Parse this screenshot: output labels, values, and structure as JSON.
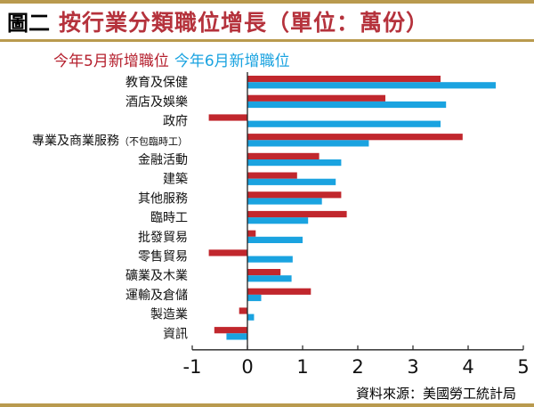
{
  "header": {
    "fig_no": "圖二",
    "title": "按行業分類職位增長（單位：萬份）"
  },
  "legend": {
    "may": "今年5月新增職位",
    "jun": "今年6月新增職位"
  },
  "source": "資料來源：美國勞工統計局",
  "colors": {
    "may": "#c1272d",
    "jun": "#1aa3e0",
    "gold": "#b99a4e",
    "title": "#b5323c"
  },
  "chart_data": {
    "type": "bar",
    "orientation": "horizontal",
    "categories": [
      "教育及保健",
      "酒店及娛樂",
      "政府",
      "專業及商業服務（不包臨時工）",
      "金融活動",
      "建築",
      "其他服務",
      "臨時工",
      "批發貿易",
      "零售貿易",
      "礦業及木業",
      "運輸及倉儲",
      "製造業",
      "資訊"
    ],
    "series": [
      {
        "name": "今年5月新增職位",
        "values": [
          3.5,
          2.5,
          -0.7,
          3.9,
          1.3,
          0.9,
          1.7,
          1.8,
          0.15,
          -0.7,
          0.6,
          1.15,
          -0.15,
          -0.6
        ]
      },
      {
        "name": "今年6月新增職位",
        "values": [
          4.5,
          3.6,
          3.5,
          2.2,
          1.7,
          1.6,
          1.35,
          1.1,
          1.0,
          0.82,
          0.8,
          0.25,
          0.12,
          -0.38
        ]
      }
    ],
    "xlim": [
      -1,
      5
    ],
    "xticks": [
      "-1",
      "0",
      "1",
      "2",
      "3",
      "4",
      "5"
    ],
    "grid": false,
    "legend_position": "top-left"
  }
}
